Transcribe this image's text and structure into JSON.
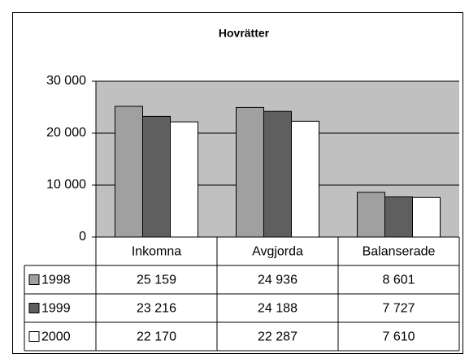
{
  "chart_data": {
    "type": "bar",
    "title": "Hovrätter",
    "categories": [
      "Inkomna",
      "Avgjorda",
      "Balanserade"
    ],
    "series": [
      {
        "name": "1998",
        "color": "#a0a0a0",
        "values": [
          25159,
          24936,
          8601
        ],
        "value_labels": [
          "25 159",
          "24 936",
          "8 601"
        ]
      },
      {
        "name": "1999",
        "color": "#5f5f5f",
        "values": [
          23216,
          24188,
          7727
        ],
        "value_labels": [
          "23 216",
          "24 188",
          "7 727"
        ]
      },
      {
        "name": "2000",
        "color": "#ffffff",
        "values": [
          22170,
          22287,
          7610
        ],
        "value_labels": [
          "22 170",
          "22 287",
          "7 610"
        ]
      }
    ],
    "ylim": [
      0,
      30000
    ],
    "yticks": [
      {
        "value": 0,
        "label": "0"
      },
      {
        "value": 10000,
        "label": "10 000"
      },
      {
        "value": 20000,
        "label": "20 000"
      },
      {
        "value": 30000,
        "label": "30 000"
      }
    ],
    "grid": true
  }
}
